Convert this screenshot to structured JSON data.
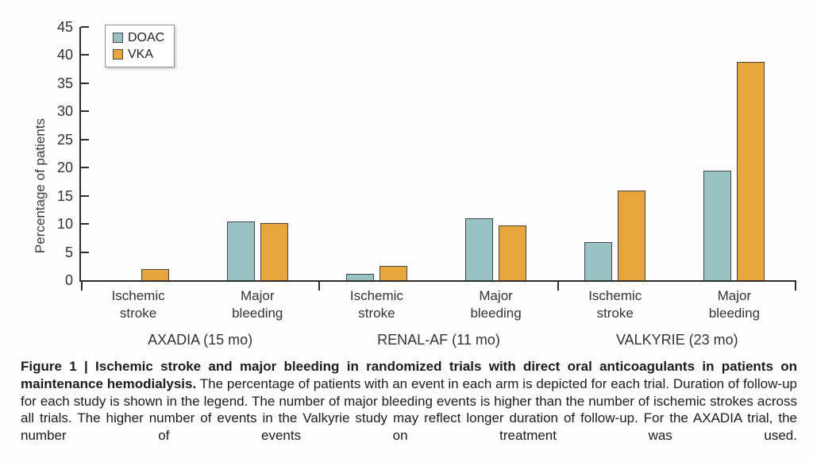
{
  "figure": {
    "caption_bold": "Figure 1 | Ischemic stroke and major bleeding in randomized trials with direct oral anticoagulants in patients on maintenance hemodialysis.",
    "caption_text": " The percentage of patients with an event in each arm is depicted for each trial. Duration of follow-up for each study is shown in the legend. The number of major bleeding events is higher than the number of ischemic strokes across all trials. The higher number of events in the Valkyrie study may reflect longer duration of follow-up. For the AXADIA trial, the number of events on treatment was used."
  },
  "chart_data": {
    "type": "bar",
    "title": "",
    "xlabel": "",
    "ylabel": "Percentage of patients",
    "ylim": [
      0,
      45
    ],
    "ytick_interval": 5,
    "grid": false,
    "legend_position": "top-left",
    "categories": [
      "Ischemic stroke",
      "Major bleeding"
    ],
    "groups": [
      "AXADIA (15 mo)",
      "RENAL-AF (11 mo)",
      "VALKYRIE (23 mo)"
    ],
    "series": [
      {
        "name": "DOAC",
        "color": "#98c2c4",
        "values": [
          [
            0,
            10.4
          ],
          [
            1.1,
            11.0
          ],
          [
            6.8,
            19.4
          ]
        ]
      },
      {
        "name": "VKA",
        "color": "#e7a53c",
        "values": [
          [
            2.0,
            10.2
          ],
          [
            2.6,
            9.7
          ],
          [
            16.0,
            38.8
          ]
        ]
      }
    ],
    "bar_border_color": "#454545",
    "axis_color": "#2e2e2e"
  }
}
